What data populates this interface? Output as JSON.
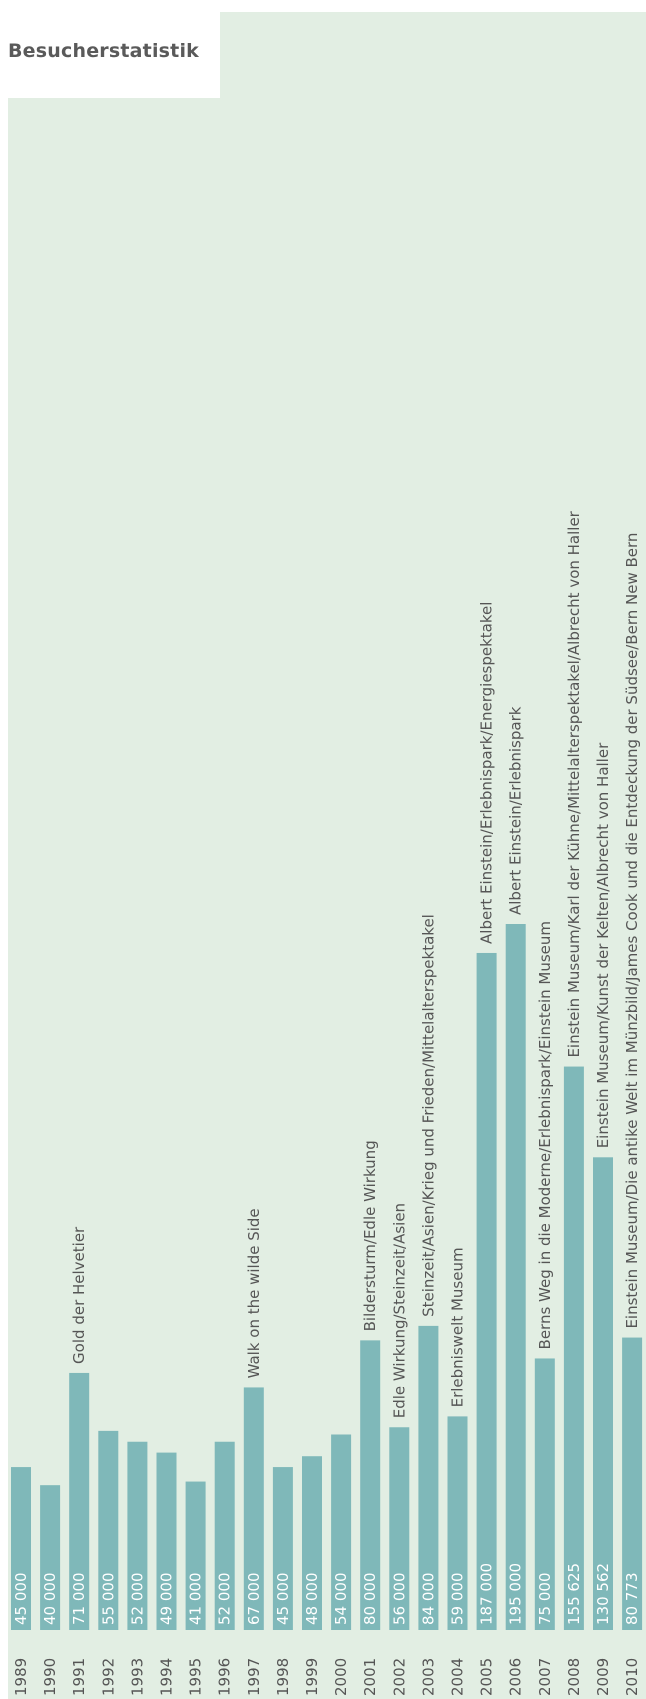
{
  "title": "Besucherstatistik",
  "colors": {
    "bar": "#7fb8b9",
    "panel": "#e2eee3",
    "value_text": "#ffffff",
    "year_text": "#555555",
    "label_text": "#555555"
  },
  "chart_data": {
    "type": "bar",
    "orientation": "vertical",
    "title": "Besucherstatistik",
    "xlabel": "",
    "ylabel": "",
    "categories": [
      "1989",
      "1990",
      "1991",
      "1992",
      "1993",
      "1994",
      "1995",
      "1996",
      "1997",
      "1998",
      "1999",
      "2000",
      "2001",
      "2002",
      "2003",
      "2004",
      "2005",
      "2006",
      "2007",
      "2008",
      "2009",
      "2010"
    ],
    "value_labels": [
      "45 000",
      "40 000",
      "71 000",
      "55 000",
      "52 000",
      "49 000",
      "41 000",
      "52 000",
      "67 000",
      "45 000",
      "48 000",
      "54 000",
      "80 000",
      "56 000",
      "84 000",
      "59 000",
      "187 000",
      "195 000",
      "75 000",
      "155 625",
      "130 562",
      "80 773"
    ],
    "values": [
      45000,
      40000,
      71000,
      55000,
      52000,
      49000,
      41000,
      52000,
      67000,
      45000,
      48000,
      54000,
      80000,
      56000,
      84000,
      59000,
      187000,
      195000,
      75000,
      155625,
      130562,
      80773
    ],
    "annotations": [
      "",
      "",
      "Gold der Helvetier",
      "",
      "",
      "",
      "",
      "",
      "Walk on the wilde Side",
      "",
      "",
      "",
      "Bildersturm/Edle Wirkung",
      "Edle Wirkung/Steinzeit/Asien",
      "Steinzeit/Asien/Krieg und Frieden/Mittelalterspektakel",
      "Erlebniswelt Museum",
      "Albert Einstein/Erlebnispark/Energiespektakel",
      "Albert Einstein/Erlebnispark",
      "Berns Weg in die Moderne/Erlebnispark/Einstein Museum",
      "Einstein Museum/Karl der Kühne/Mittelalterspektakel/Albrecht von Haller",
      "Einstein Museum/Kunst der Kelten/Albrecht von Haller",
      "Einstein Museum/Die antike Welt im Münzbild/James Cook und die Entdeckung der Südsee/Bern New Bern"
    ],
    "ylim": [
      0,
      200000
    ],
    "grid": false,
    "legend": "none"
  }
}
